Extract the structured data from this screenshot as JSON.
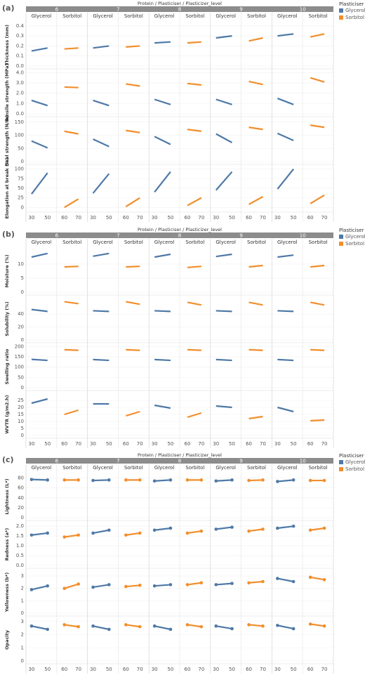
{
  "chart_data": [
    {
      "type": "line",
      "label": "(a)",
      "label_color": "#000000",
      "title": "Protein / Plasticiser / Plasticizer_level",
      "proteins": [
        "6",
        "7",
        "8",
        "9",
        "10"
      ],
      "legend_title": "Plasticiser",
      "legend": "right",
      "grid": true,
      "markers": false,
      "series": [
        {
          "name": "Glycerol",
          "color": "#4e79a7",
          "x": [
            30,
            50
          ],
          "xlim": [
            23,
            61.5
          ]
        },
        {
          "name": "Sorbitol",
          "color": "#f28e2b",
          "x": [
            60,
            70
          ],
          "xlim": [
            54.5,
            76.5
          ]
        }
      ],
      "rows": [
        {
          "label": "Thickness (mm)",
          "ylim": [
            0,
            0.42
          ],
          "yticks": [
            {
              "value": 0,
              "label": "0.0"
            },
            0.1,
            0.2,
            0.3,
            0.4
          ],
          "values": [
            [
              [
                0.15,
                0.18
              ],
              [
                0.18,
                0.2
              ],
              [
                0.23,
                0.24
              ],
              [
                0.28,
                0.3
              ],
              [
                0.3,
                0.32
              ]
            ],
            [
              [
                0.17,
                0.18
              ],
              [
                0.19,
                0.2
              ],
              [
                0.23,
                0.24
              ],
              [
                0.25,
                0.28
              ],
              [
                0.29,
                0.32
              ]
            ]
          ]
        },
        {
          "label": "Tensile strength (MPa)",
          "ylim": [
            0,
            4.1
          ],
          "yticks": [
            {
              "value": 0,
              "label": "0.0"
            },
            {
              "value": 1,
              "label": "1.0"
            },
            {
              "value": 2,
              "label": "2.0"
            },
            {
              "value": 3,
              "label": "3.0"
            },
            {
              "value": 4,
              "label": "4.0"
            }
          ],
          "values": [
            [
              [
                1.3,
                0.8
              ],
              [
                1.3,
                0.8
              ],
              [
                1.4,
                0.9
              ],
              [
                1.4,
                0.9
              ],
              [
                1.5,
                0.9
              ]
            ],
            [
              [
                2.6,
                2.55
              ],
              [
                2.9,
                2.7
              ],
              [
                2.95,
                2.8
              ],
              [
                3.15,
                2.85
              ],
              [
                3.5,
                3.1
              ]
            ]
          ]
        },
        {
          "label": "Seal strength (N/m)",
          "ylim": [
            0,
            160
          ],
          "yticks": [
            0,
            50,
            100,
            150
          ],
          "values": [
            [
              [
                78,
                52
              ],
              [
                85,
                57
              ],
              [
                95,
                65
              ],
              [
                105,
                72
              ],
              [
                107,
                80
              ]
            ],
            [
              [
                115,
                105
              ],
              [
                118,
                110
              ],
              [
                122,
                115
              ],
              [
                130,
                122
              ],
              [
                138,
                130
              ]
            ]
          ]
        },
        {
          "label": "Elongation at break (%)",
          "ylim": [
            -5,
            105
          ],
          "yticks": [
            0,
            25,
            50,
            75,
            100
          ],
          "values": [
            [
              [
                35,
                90
              ],
              [
                37,
                88
              ],
              [
                40,
                93
              ],
              [
                45,
                93
              ],
              [
                48,
                100
              ]
            ],
            [
              [
                0,
                22
              ],
              [
                2,
                25
              ],
              [
                5,
                25
              ],
              [
                8,
                28
              ],
              [
                10,
                32
              ]
            ]
          ]
        }
      ]
    },
    {
      "type": "line",
      "label": "(b)",
      "label_color": "#c00000",
      "title": "Protein / Plasticiser / Plasticizer_level",
      "proteins": [
        "6",
        "7",
        "8",
        "9",
        "10"
      ],
      "legend_title": "Plasticiser",
      "legend": "right",
      "grid": true,
      "markers": false,
      "series": [
        {
          "name": "Glycerol",
          "color": "#4e79a7",
          "x": [
            30,
            50
          ],
          "xlim": [
            23,
            61.5
          ]
        },
        {
          "name": "Sorbitol",
          "color": "#f28e2b",
          "x": [
            60,
            70
          ],
          "xlim": [
            54.5,
            76.5
          ]
        }
      ],
      "rows": [
        {
          "label": "Moisture (%)",
          "ylim": [
            0,
            15
          ],
          "yticks": [
            0,
            5,
            10
          ],
          "values": [
            [
              [
                12.5,
                13.8
              ],
              [
                12.8,
                13.8
              ],
              [
                12.5,
                13.5
              ],
              [
                12.7,
                13.5
              ],
              [
                12.5,
                13.2
              ]
            ],
            [
              [
                9,
                9.2
              ],
              [
                9,
                9.2
              ],
              [
                8.8,
                9.2
              ],
              [
                9,
                9.5
              ],
              [
                9,
                9.5
              ]
            ]
          ]
        },
        {
          "label": "Solubility (%)",
          "ylim": [
            0,
            65
          ],
          "yticks": [
            0,
            20,
            40
          ],
          "values": [
            [
              [
                47,
                44
              ],
              [
                45,
                44
              ],
              [
                45,
                44
              ],
              [
                45,
                44
              ],
              [
                45,
                44
              ]
            ],
            [
              [
                59,
                56
              ],
              [
                59,
                55
              ],
              [
                58,
                54
              ],
              [
                58,
                54
              ],
              [
                58,
                54
              ]
            ]
          ]
        },
        {
          "label": "Swelling ratio",
          "ylim": [
            0,
            205
          ],
          "yticks": [
            0,
            50,
            100,
            150,
            200
          ],
          "values": [
            [
              [
                138,
                133
              ],
              [
                137,
                133
              ],
              [
                137,
                133
              ],
              [
                137,
                133
              ],
              [
                137,
                133
              ]
            ],
            [
              [
                185,
                182
              ],
              [
                185,
                182
              ],
              [
                185,
                182
              ],
              [
                185,
                182
              ],
              [
                185,
                182
              ]
            ]
          ]
        },
        {
          "label": "WVTR (g/m2.h)",
          "ylim": [
            0,
            30
          ],
          "yticks": [
            0,
            5,
            10,
            15,
            20,
            25
          ],
          "values": [
            [
              [
                23,
                26
              ],
              [
                22.5,
                22.5
              ],
              [
                21.5,
                19.5
              ],
              [
                21,
                20
              ],
              [
                20,
                17
              ]
            ],
            [
              [
                15,
                18
              ],
              [
                14,
                17
              ],
              [
                13,
                16
              ],
              [
                12,
                13.5
              ],
              [
                10.5,
                11
              ]
            ]
          ]
        }
      ]
    },
    {
      "type": "line",
      "label": "(c)",
      "label_color": "#000000",
      "title": "Protein / Plasticiser / Plasticizer_level",
      "proteins": [
        "6",
        "7",
        "8",
        "9",
        "10"
      ],
      "legend_title": "Plasticiser",
      "legend": "right",
      "grid": true,
      "markers": true,
      "series": [
        {
          "name": "Glycerol",
          "color": "#4e79a7",
          "x": [
            30,
            50
          ],
          "xlim": [
            23,
            61.5
          ]
        },
        {
          "name": "Sorbitol",
          "color": "#f28e2b",
          "x": [
            60,
            70
          ],
          "xlim": [
            54.5,
            76.5
          ]
        }
      ],
      "rows": [
        {
          "label": "Lightness (L*)",
          "ylim": [
            0,
            85
          ],
          "yticks": [
            0,
            20,
            40,
            60,
            80
          ],
          "values": [
            [
              [
                77,
                76
              ],
              [
                75,
                76
              ],
              [
                74,
                76
              ],
              [
                74,
                76
              ],
              [
                73,
                76
              ]
            ],
            [
              [
                76,
                76
              ],
              [
                76,
                76
              ],
              [
                76,
                76
              ],
              [
                75,
                76
              ],
              [
                75,
                75
              ]
            ]
          ]
        },
        {
          "label": "Redness (a*)",
          "ylim": [
            0,
            2.15
          ],
          "yticks": [
            {
              "value": 0,
              "label": "0.0"
            },
            0.5,
            {
              "value": 1,
              "label": "1.0"
            },
            1.5,
            {
              "value": 2,
              "label": "2.0"
            }
          ],
          "values": [
            [
              [
                1.55,
                1.65
              ],
              [
                1.65,
                1.8
              ],
              [
                1.8,
                1.9
              ],
              [
                1.85,
                1.95
              ],
              [
                1.9,
                2.0
              ]
            ],
            [
              [
                1.45,
                1.55
              ],
              [
                1.55,
                1.65
              ],
              [
                1.65,
                1.75
              ],
              [
                1.75,
                1.85
              ],
              [
                1.8,
                1.9
              ]
            ]
          ]
        },
        {
          "label": "Yellowness (b*)",
          "ylim": [
            0,
            3.4
          ],
          "yticks": [
            0,
            1,
            2,
            3
          ],
          "values": [
            [
              [
                1.9,
                2.2
              ],
              [
                2.1,
                2.3
              ],
              [
                2.2,
                2.3
              ],
              [
                2.3,
                2.4
              ],
              [
                2.8,
                2.55
              ]
            ],
            [
              [
                2.0,
                2.35
              ],
              [
                2.15,
                2.25
              ],
              [
                2.3,
                2.45
              ],
              [
                2.45,
                2.55
              ],
              [
                2.9,
                2.7
              ]
            ]
          ]
        },
        {
          "label": "Opacity",
          "ylim": [
            0,
            3.2
          ],
          "yticks": [
            0,
            1,
            2,
            3
          ],
          "values": [
            [
              [
                2.65,
                2.4
              ],
              [
                2.65,
                2.4
              ],
              [
                2.65,
                2.4
              ],
              [
                2.65,
                2.45
              ],
              [
                2.7,
                2.45
              ]
            ],
            [
              [
                2.75,
                2.6
              ],
              [
                2.75,
                2.6
              ],
              [
                2.75,
                2.6
              ],
              [
                2.75,
                2.65
              ],
              [
                2.8,
                2.65
              ]
            ]
          ]
        }
      ]
    }
  ]
}
